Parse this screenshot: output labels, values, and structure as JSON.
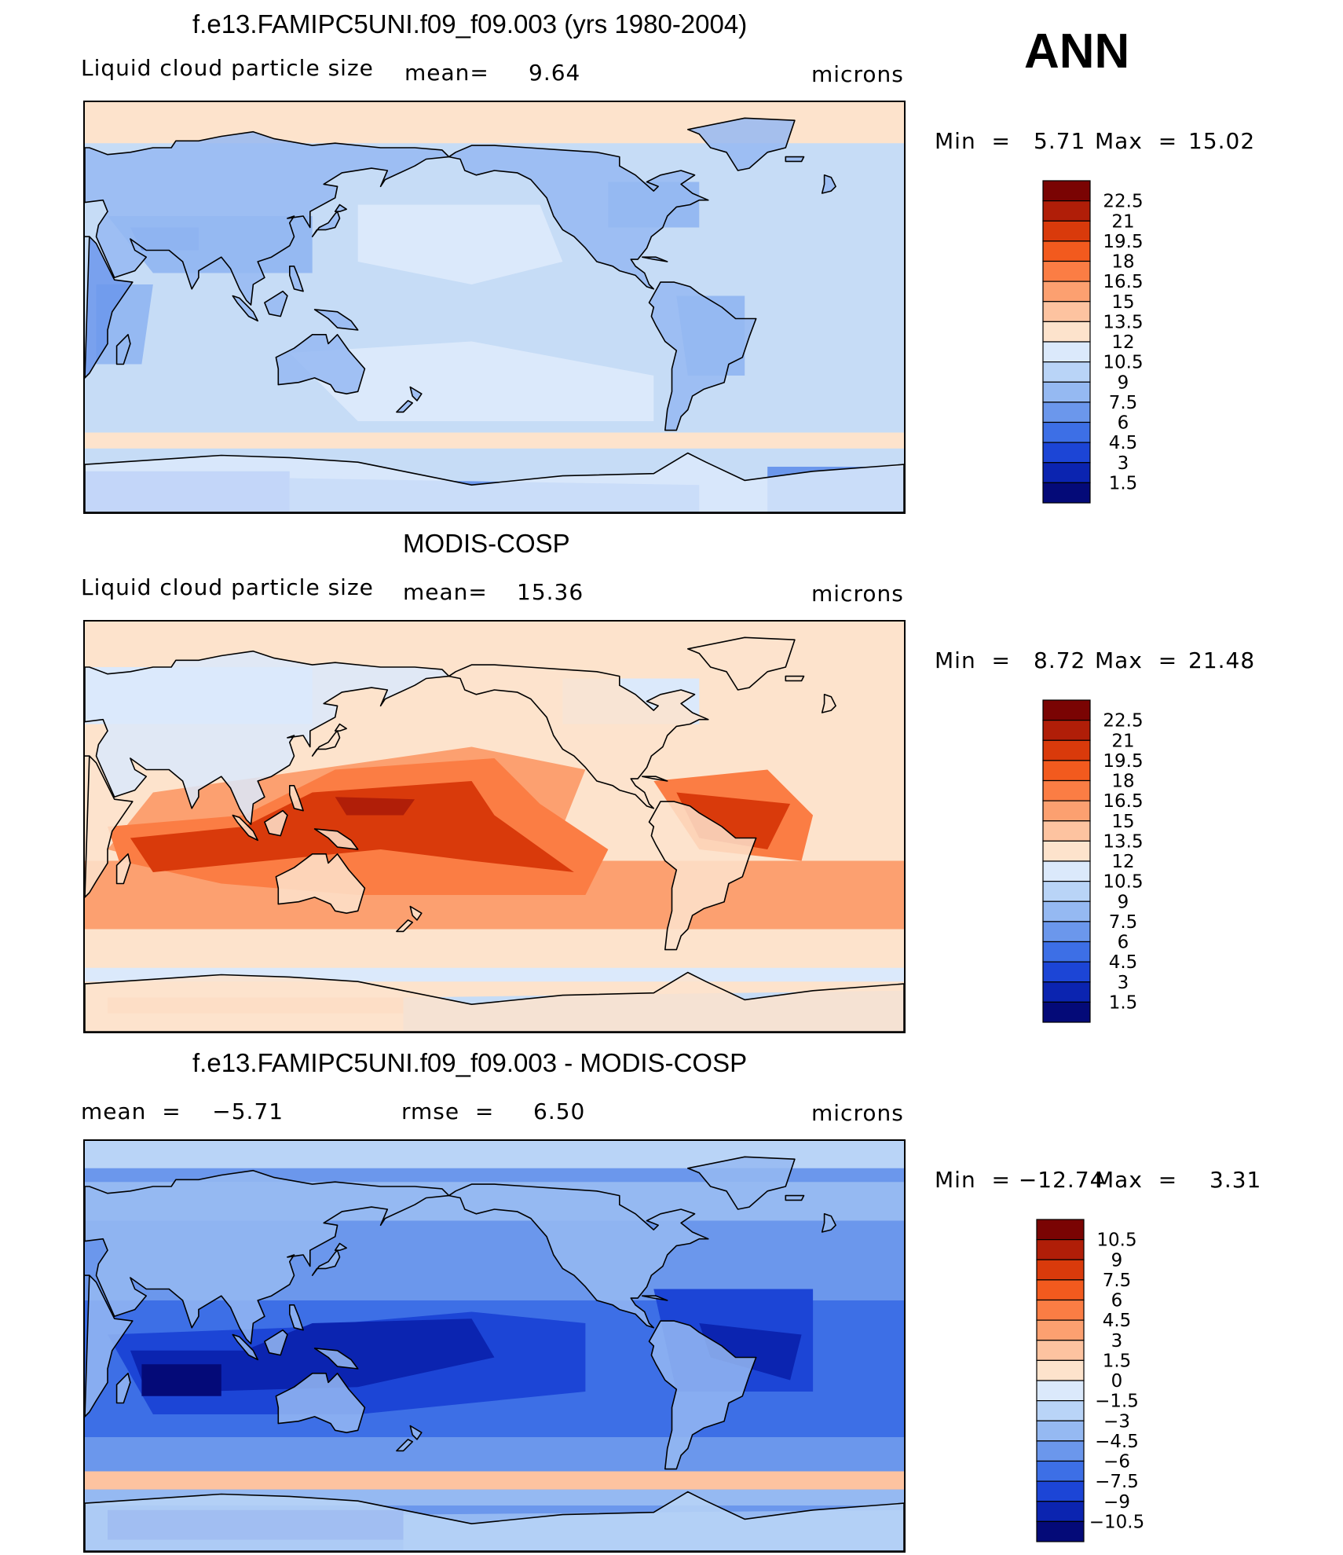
{
  "season": "ANN",
  "panels": [
    {
      "title": "f.e13.FAMIPC5UNI.f09_f09.003 (yrs 1980-2004)",
      "left_label": "Liquid cloud particle size",
      "stat_label": "mean=",
      "stat_value": "9.64",
      "units": "microns",
      "min_label": "Min  =",
      "min_value": "5.71",
      "max_label": "Max  =",
      "max_value": "15.02",
      "field": "model"
    },
    {
      "title": "MODIS-COSP",
      "left_label": "Liquid cloud particle size",
      "stat_label": "mean=",
      "stat_value": "15.36",
      "units": "microns",
      "min_label": "Min  =",
      "min_value": "8.72",
      "max_label": "Max  =",
      "max_value": "21.48",
      "field": "obs"
    },
    {
      "title": "f.e13.FAMIPC5UNI.f09_f09.003 - MODIS-COSP",
      "left_label": "mean  =    −5.71",
      "stat_label": "rmse  =",
      "stat_value": "6.50",
      "units": "microns",
      "min_label": "Min  = −12.74",
      "min_value": "",
      "max_label": "Max  =",
      "max_value": "3.31",
      "field": "diff"
    }
  ],
  "chart_data": [
    {
      "type": "heatmap",
      "title": "f.e13.FAMIPC5UNI.f09_f09.003 (yrs 1980-2004)",
      "variable": "Liquid cloud particle size",
      "units": "microns",
      "mean": 9.64,
      "min": 5.71,
      "max": 15.02,
      "contour_levels": [
        1.5,
        3,
        4.5,
        6,
        7.5,
        9,
        10.5,
        12,
        13.5,
        15,
        16.5,
        18,
        19.5,
        21,
        22.5
      ]
    },
    {
      "type": "heatmap",
      "title": "MODIS-COSP",
      "variable": "Liquid cloud particle size",
      "units": "microns",
      "mean": 15.36,
      "min": 8.72,
      "max": 21.48,
      "contour_levels": [
        1.5,
        3,
        4.5,
        6,
        7.5,
        9,
        10.5,
        12,
        13.5,
        15,
        16.5,
        18,
        19.5,
        21,
        22.5
      ]
    },
    {
      "type": "heatmap",
      "title": "f.e13.FAMIPC5UNI.f09_f09.003 - MODIS-COSP",
      "units": "microns",
      "mean": -5.71,
      "rmse": 6.5,
      "min": -12.74,
      "max": 3.31,
      "contour_levels": [
        -10.5,
        -9,
        -7.5,
        -6,
        -4.5,
        -3,
        -1.5,
        0,
        1.5,
        3,
        4.5,
        6,
        7.5,
        9,
        10.5
      ]
    }
  ],
  "colorbars": [
    {
      "labels": [
        "22.5",
        "21",
        "19.5",
        "18",
        "16.5",
        "15",
        "13.5",
        "12",
        "10.5",
        "9",
        "7.5",
        "6",
        "4.5",
        "3",
        "1.5"
      ],
      "colors": [
        "#7a0403",
        "#b01e08",
        "#d93a0b",
        "#f25a1e",
        "#fb7d44",
        "#fca070",
        "#fdc3a0",
        "#fde3cc",
        "#dbe9fb",
        "#b9d4f7",
        "#95b9f2",
        "#6b97ec",
        "#3d6fe6",
        "#1c45d6",
        "#0b24b0",
        "#040a78"
      ]
    },
    {
      "labels": [
        "22.5",
        "21",
        "19.5",
        "18",
        "16.5",
        "15",
        "13.5",
        "12",
        "10.5",
        "9",
        "7.5",
        "6",
        "4.5",
        "3",
        "1.5"
      ],
      "colors": [
        "#7a0403",
        "#b01e08",
        "#d93a0b",
        "#f25a1e",
        "#fb7d44",
        "#fca070",
        "#fdc3a0",
        "#fde3cc",
        "#dbe9fb",
        "#b9d4f7",
        "#95b9f2",
        "#6b97ec",
        "#3d6fe6",
        "#1c45d6",
        "#0b24b0",
        "#040a78"
      ]
    },
    {
      "labels": [
        "10.5",
        "9",
        "7.5",
        "6",
        "4.5",
        "3",
        "1.5",
        "0",
        "−1.5",
        "−3",
        "−4.5",
        "−6",
        "−7.5",
        "−9",
        "−10.5"
      ],
      "colors": [
        "#7a0403",
        "#b01e08",
        "#d93a0b",
        "#f25a1e",
        "#fb7d44",
        "#fca070",
        "#fdc3a0",
        "#fde3cc",
        "#dbe9fb",
        "#b9d4f7",
        "#95b9f2",
        "#6b97ec",
        "#3d6fe6",
        "#1c45d6",
        "#0b24b0",
        "#040a78"
      ]
    }
  ]
}
